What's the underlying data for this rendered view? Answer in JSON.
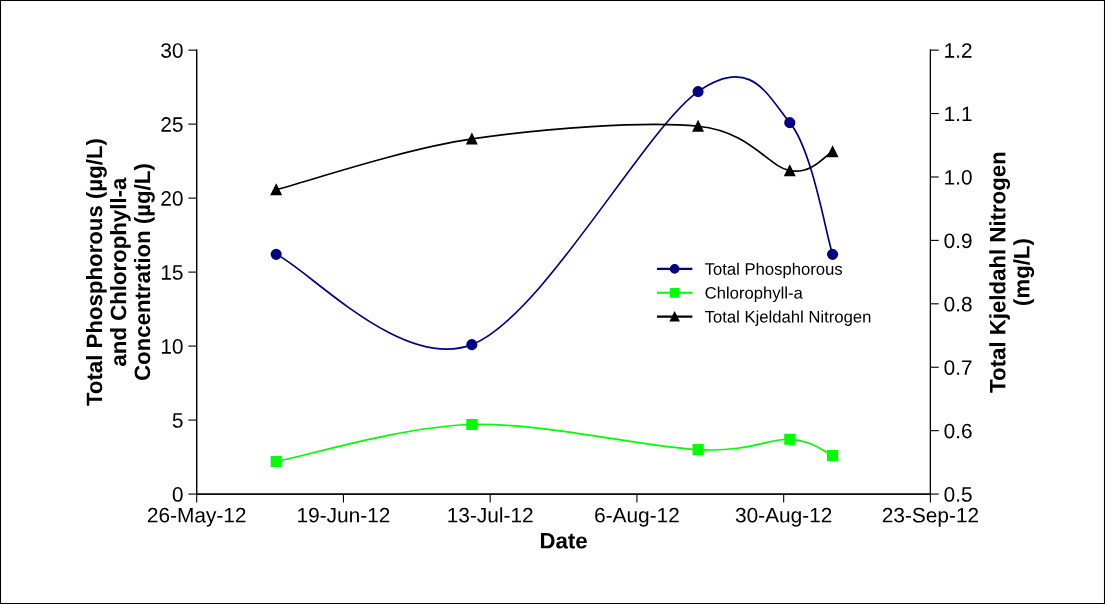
{
  "chart_data": {
    "type": "line",
    "xlabel": "Date",
    "ylabel": "Total Phosphorous (µg/L)\nand Chlorophyll-a\nConcentration (µg/L)",
    "y2label": "Total Kjeldahl Nitrogen\n(mg/L)",
    "x": [
      "2012-06-08",
      "2012-07-10",
      "2012-08-16",
      "2012-08-31",
      "2012-09-07"
    ],
    "series": [
      {
        "name": "Total Phosphorous",
        "color": "#000080",
        "marker": "circle",
        "values": [
          16.2,
          10.1,
          27.2,
          25.1,
          16.2
        ]
      },
      {
        "name": "Chlorophyll-a",
        "color": "#00ff00",
        "marker": "square",
        "values": [
          2.2,
          4.7,
          3.0,
          3.7,
          2.6
        ]
      },
      {
        "name": "Total Kjeldahl Nitrogen",
        "color": "#000000",
        "marker": "triangle",
        "axis": "y2",
        "values": [
          0.98,
          1.06,
          1.08,
          1.01,
          1.04
        ]
      }
    ],
    "xlim": [
      "2012-05-26",
      "2012-09-23"
    ],
    "xticks": [
      {
        "value": "2012-05-26",
        "label": "26-May-12"
      },
      {
        "value": "2012-06-19",
        "label": "19-Jun-12"
      },
      {
        "value": "2012-07-13",
        "label": "13-Jul-12"
      },
      {
        "value": "2012-08-06",
        "label": "6-Aug-12"
      },
      {
        "value": "2012-08-30",
        "label": "30-Aug-12"
      },
      {
        "value": "2012-09-23",
        "label": "23-Sep-12"
      }
    ],
    "ylim": [
      0,
      30
    ],
    "yticks": [
      0,
      5,
      10,
      15,
      20,
      25,
      30
    ],
    "y2lim": [
      0.5,
      1.2
    ],
    "y2ticks": [
      {
        "value": 0.5,
        "label": "0.5"
      },
      {
        "value": 0.6,
        "label": "0.6"
      },
      {
        "value": 0.7,
        "label": "0.7"
      },
      {
        "value": 0.8,
        "label": "0.8"
      },
      {
        "value": 0.9,
        "label": "0.9"
      },
      {
        "value": 1.0,
        "label": "1.0"
      },
      {
        "value": 1.1,
        "label": "1.1"
      },
      {
        "value": 1.2,
        "label": "1.2"
      }
    ],
    "grid": false,
    "legend": "center right",
    "line_style": "solid"
  }
}
